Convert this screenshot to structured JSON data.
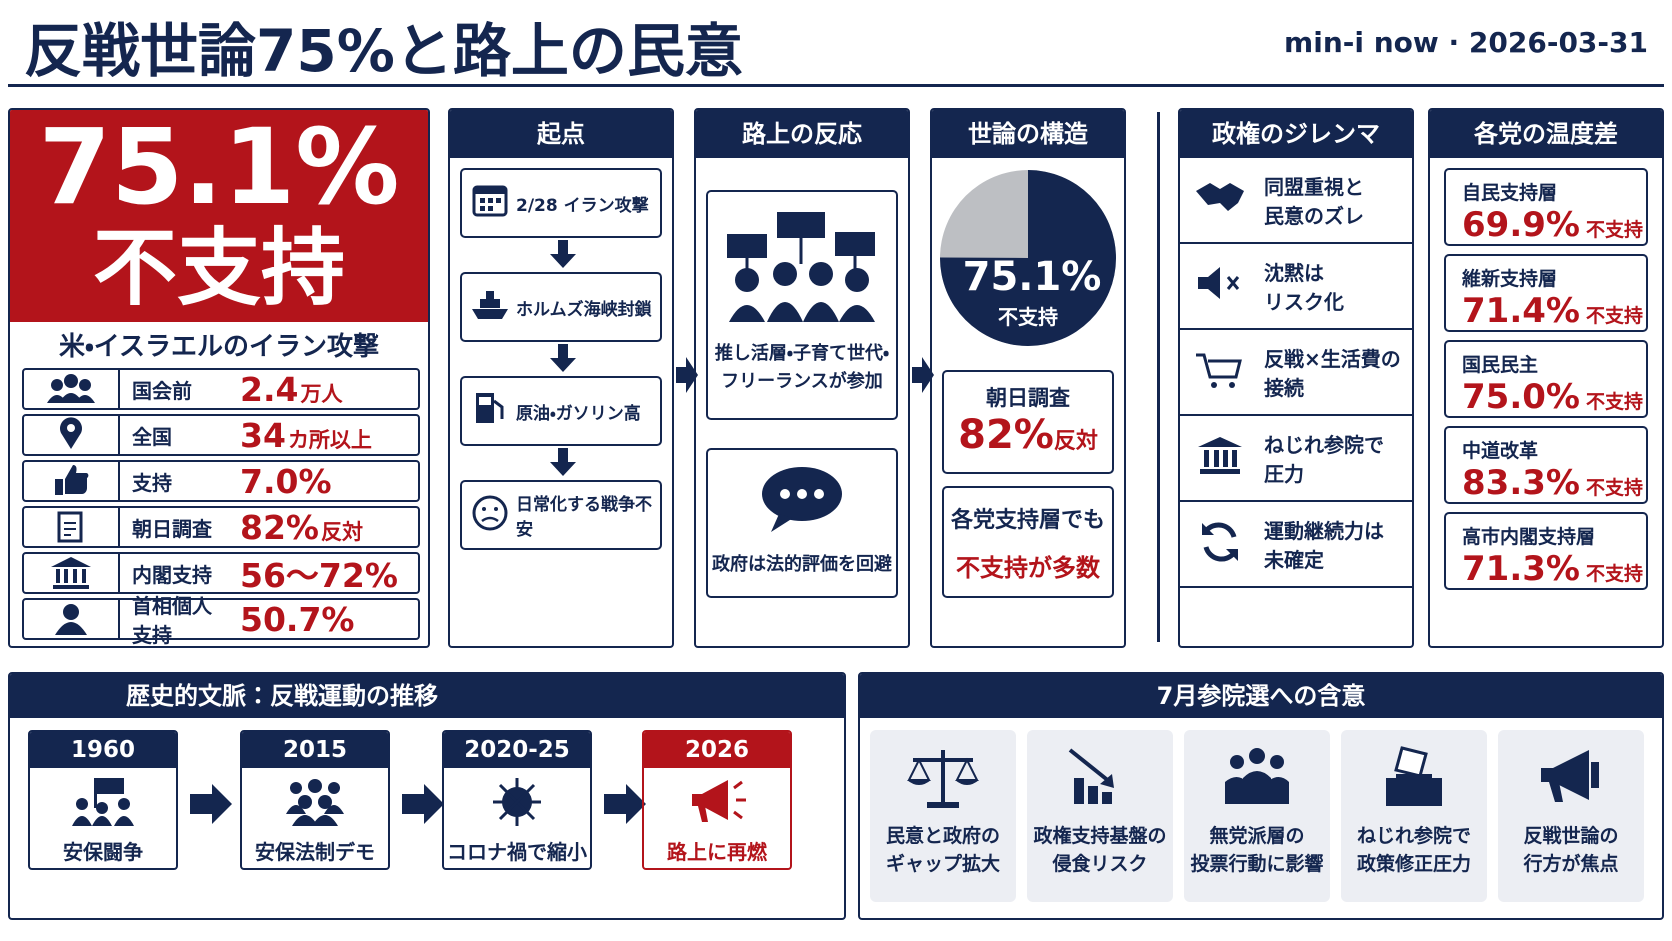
{
  "header": {
    "title": "反戦世論75%と路上の民意",
    "source": "min-i now · 2026-03-31"
  },
  "headline": {
    "value": "75.1%",
    "label": "不支持",
    "subtitle": "米・イスラエルのイラン攻撃",
    "rows": [
      {
        "label": "国会前",
        "value": "2.4",
        "unit": "万人"
      },
      {
        "label": "全国",
        "value": "34",
        "unit": "カ所以上"
      },
      {
        "label": "支持",
        "value": "7.0%"
      },
      {
        "label": "朝日調査",
        "value": "82%",
        "unit": "反対"
      },
      {
        "label": "内閣支持",
        "value": "56〜72%"
      },
      {
        "label": "首相個人支持",
        "value": "50.7%"
      }
    ]
  },
  "origin": {
    "title": "起点",
    "steps": [
      "2/28 イラン攻撃",
      "ホルムズ海峡封鎖",
      "原油・ガソリン高",
      "日常化する戦争不安"
    ]
  },
  "street": {
    "title": "路上の反応",
    "items": [
      "推し活層・子育て世代・\nフリーランスが参加",
      "政府は法的評価を回避"
    ]
  },
  "structure": {
    "title": "世論の構造",
    "pie": {
      "value": 75.1,
      "label": "75.1%",
      "caption": "不支持"
    },
    "asahi": {
      "label": "朝日調査",
      "value": "82%",
      "unit": "反対"
    },
    "note": {
      "line1": "各党支持層でも",
      "line2": "不支持が多数"
    }
  },
  "dilemma": {
    "title": "政権のジレンマ",
    "items": [
      "同盟重視と\n民意のズレ",
      "沈黙は\nリスク化",
      "反戦×生活費の\n接続",
      "ねじれ参院で\n圧力",
      "運動継続力は\n未確定"
    ]
  },
  "parties": {
    "title": "各党の温度差",
    "items": [
      {
        "name": "自民支持層",
        "value": "69.9%",
        "unit": "不支持"
      },
      {
        "name": "維新支持層",
        "value": "71.4%",
        "unit": "不支持"
      },
      {
        "name": "国民民主",
        "value": "75.0%",
        "unit": "不支持"
      },
      {
        "name": "中道改革",
        "value": "83.3%",
        "unit": "不支持"
      },
      {
        "name": "高市内閣支持層",
        "value": "71.3%",
        "unit": "不支持"
      }
    ]
  },
  "history": {
    "title": "歴史的文脈：反戦運動の推移",
    "items": [
      {
        "year": "1960",
        "label": "安保闘争"
      },
      {
        "year": "2015",
        "label": "安保法制デモ"
      },
      {
        "year": "2020-25",
        "label": "コロナ禍で縮小"
      },
      {
        "year": "2026",
        "label": "路上に再燃"
      }
    ]
  },
  "implications": {
    "title": "7月参院選への含意",
    "items": [
      "民意と政府の\nギャップ拡大",
      "政権支持基盤の\n侵食リスク",
      "無党派層の\n投票行動に影響",
      "ねじれ参院で\n政策修正圧力",
      "反戦世論の\n行方が焦点"
    ]
  }
}
